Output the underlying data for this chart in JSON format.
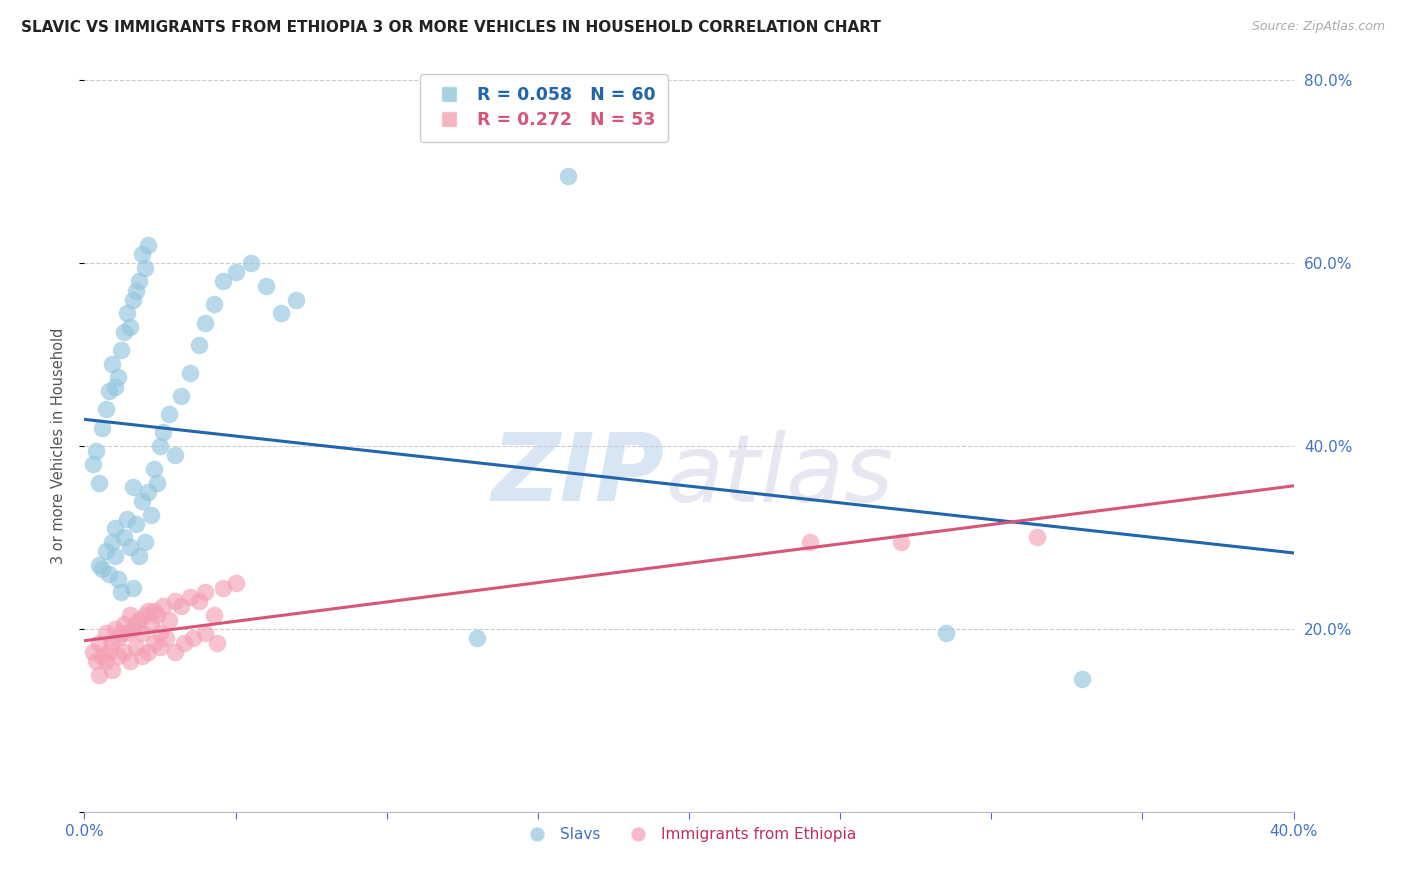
{
  "title": "SLAVIC VS IMMIGRANTS FROM ETHIOPIA 3 OR MORE VEHICLES IN HOUSEHOLD CORRELATION CHART",
  "source": "Source: ZipAtlas.com",
  "ylabel": "3 or more Vehicles in Household",
  "xlim": [
    0.0,
    0.4
  ],
  "ylim": [
    0.0,
    0.8
  ],
  "x_ticks": [
    0.0,
    0.05,
    0.1,
    0.15,
    0.2,
    0.25,
    0.3,
    0.35,
    0.4
  ],
  "y_ticks_right": [
    0.2,
    0.4,
    0.6,
    0.8
  ],
  "slavs_R": 0.058,
  "slavs_N": 60,
  "ethiopia_R": 0.272,
  "ethiopia_N": 53,
  "slavs_color": "#92c5de",
  "ethiopia_color": "#f4a0b5",
  "slavs_line_color": "#2166ac",
  "ethiopia_line_color": "#d6567a",
  "grid_color": "#cccccc",
  "watermark_zip": "ZIP",
  "watermark_atlas": "atlas",
  "slavs_x": [
    0.005,
    0.006,
    0.007,
    0.008,
    0.009,
    0.01,
    0.01,
    0.011,
    0.012,
    0.013,
    0.014,
    0.015,
    0.016,
    0.016,
    0.017,
    0.018,
    0.019,
    0.02,
    0.021,
    0.022,
    0.023,
    0.024,
    0.025,
    0.026,
    0.028,
    0.03,
    0.032,
    0.035,
    0.038,
    0.04,
    0.043,
    0.046,
    0.05,
    0.055,
    0.06,
    0.065,
    0.07,
    0.003,
    0.004,
    0.005,
    0.006,
    0.007,
    0.008,
    0.009,
    0.01,
    0.011,
    0.012,
    0.013,
    0.014,
    0.015,
    0.016,
    0.017,
    0.018,
    0.019,
    0.02,
    0.021,
    0.13,
    0.16,
    0.285,
    0.33
  ],
  "slavs_y": [
    0.27,
    0.265,
    0.285,
    0.26,
    0.295,
    0.28,
    0.31,
    0.255,
    0.24,
    0.3,
    0.32,
    0.29,
    0.245,
    0.355,
    0.315,
    0.28,
    0.34,
    0.295,
    0.35,
    0.325,
    0.375,
    0.36,
    0.4,
    0.415,
    0.435,
    0.39,
    0.455,
    0.48,
    0.51,
    0.535,
    0.555,
    0.58,
    0.59,
    0.6,
    0.575,
    0.545,
    0.56,
    0.38,
    0.395,
    0.36,
    0.42,
    0.44,
    0.46,
    0.49,
    0.465,
    0.475,
    0.505,
    0.525,
    0.545,
    0.53,
    0.56,
    0.57,
    0.58,
    0.61,
    0.595,
    0.62,
    0.19,
    0.695,
    0.195,
    0.145
  ],
  "ethiopia_x": [
    0.003,
    0.004,
    0.005,
    0.006,
    0.007,
    0.008,
    0.009,
    0.01,
    0.011,
    0.012,
    0.013,
    0.014,
    0.015,
    0.016,
    0.017,
    0.018,
    0.019,
    0.02,
    0.021,
    0.022,
    0.023,
    0.024,
    0.025,
    0.026,
    0.028,
    0.03,
    0.032,
    0.035,
    0.038,
    0.04,
    0.043,
    0.046,
    0.05,
    0.005,
    0.007,
    0.009,
    0.011,
    0.013,
    0.015,
    0.017,
    0.019,
    0.021,
    0.023,
    0.025,
    0.027,
    0.03,
    0.033,
    0.036,
    0.04,
    0.044,
    0.24,
    0.27,
    0.315
  ],
  "ethiopia_y": [
    0.175,
    0.165,
    0.185,
    0.17,
    0.195,
    0.175,
    0.185,
    0.2,
    0.19,
    0.195,
    0.205,
    0.195,
    0.215,
    0.2,
    0.205,
    0.21,
    0.195,
    0.215,
    0.22,
    0.205,
    0.22,
    0.215,
    0.195,
    0.225,
    0.21,
    0.23,
    0.225,
    0.235,
    0.23,
    0.24,
    0.215,
    0.245,
    0.25,
    0.15,
    0.165,
    0.155,
    0.17,
    0.175,
    0.165,
    0.18,
    0.17,
    0.175,
    0.185,
    0.18,
    0.19,
    0.175,
    0.185,
    0.19,
    0.195,
    0.185,
    0.295,
    0.295,
    0.3
  ]
}
